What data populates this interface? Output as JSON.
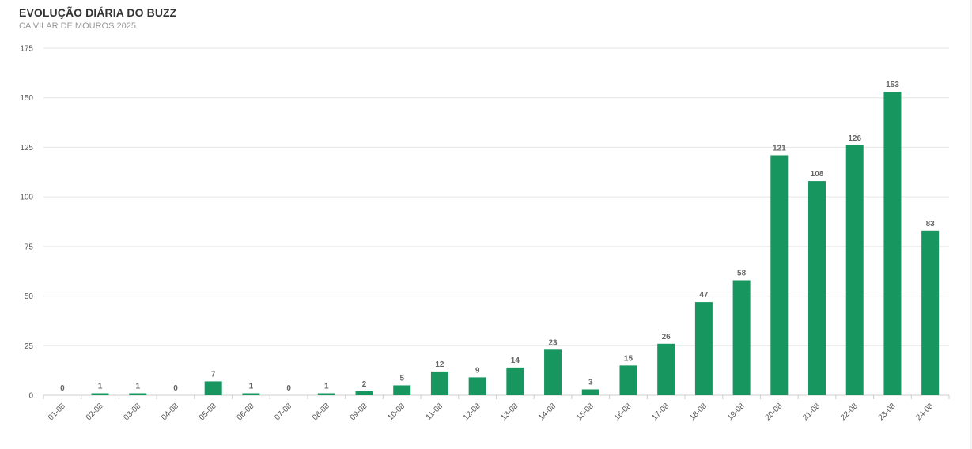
{
  "chart_data": {
    "type": "bar",
    "title": "EVOLUÇÃO DIÁRIA DO BUZZ",
    "subtitle": "CA VILAR DE MOUROS 2025",
    "xlabel": "",
    "ylabel": "",
    "categories": [
      "01-08",
      "02-08",
      "03-08",
      "04-08",
      "05-08",
      "06-08",
      "07-08",
      "08-08",
      "09-08",
      "10-08",
      "11-08",
      "12-08",
      "13-08",
      "14-08",
      "15-08",
      "16-08",
      "17-08",
      "18-08",
      "19-08",
      "20-08",
      "21-08",
      "22-08",
      "23-08",
      "24-08"
    ],
    "values": [
      0,
      1,
      1,
      0,
      7,
      1,
      0,
      1,
      2,
      5,
      12,
      9,
      14,
      23,
      3,
      15,
      26,
      47,
      58,
      121,
      108,
      126,
      153,
      83
    ],
    "ylim": [
      0,
      175
    ],
    "yticks": [
      0,
      25,
      50,
      75,
      100,
      125,
      150,
      175
    ],
    "grid": true,
    "legend": "none",
    "bar_color": "#17965f",
    "data_labels": true
  }
}
